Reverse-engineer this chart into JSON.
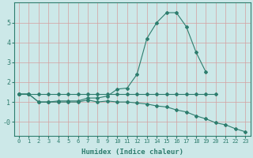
{
  "xlabel": "Humidex (Indice chaleur)",
  "x_values": [
    0,
    1,
    2,
    3,
    4,
    5,
    6,
    7,
    8,
    9,
    10,
    11,
    12,
    13,
    14,
    15,
    16,
    17,
    18,
    19,
    20,
    21,
    22,
    23
  ],
  "line1": [
    1.4,
    1.4,
    1.0,
    1.0,
    1.05,
    1.05,
    1.05,
    1.2,
    1.2,
    1.3,
    1.65,
    1.7,
    2.4,
    4.2,
    5.0,
    5.5,
    5.5,
    4.8,
    3.5,
    2.5,
    null,
    null,
    null,
    null
  ],
  "line2": [
    1.4,
    1.4,
    1.4,
    1.4,
    1.4,
    1.4,
    1.4,
    1.4,
    1.4,
    1.4,
    1.4,
    1.4,
    1.4,
    1.4,
    1.4,
    1.4,
    1.4,
    1.4,
    1.4,
    1.4,
    1.4,
    null,
    null,
    null
  ],
  "line3": [
    1.4,
    1.4,
    1.0,
    1.0,
    1.0,
    1.0,
    1.0,
    1.1,
    1.0,
    1.05,
    1.0,
    1.0,
    0.95,
    0.9,
    0.8,
    0.75,
    0.6,
    0.5,
    0.3,
    0.15,
    -0.05,
    -0.15,
    -0.35,
    -0.5
  ],
  "line_color": "#2e7d6e",
  "bg_color": "#cce8e8",
  "grid_color": "#b8c8c8",
  "ylim": [
    -0.7,
    6.0
  ],
  "xlim": [
    -0.5,
    23.5
  ],
  "yticks": [
    0,
    1,
    2,
    3,
    4,
    5
  ],
  "ytick_labels": [
    "-0",
    "1",
    "2",
    "3",
    "4",
    "5"
  ],
  "xticks": [
    0,
    1,
    2,
    3,
    4,
    5,
    6,
    7,
    8,
    9,
    10,
    11,
    12,
    13,
    14,
    15,
    16,
    17,
    18,
    19,
    20,
    21,
    22,
    23
  ]
}
